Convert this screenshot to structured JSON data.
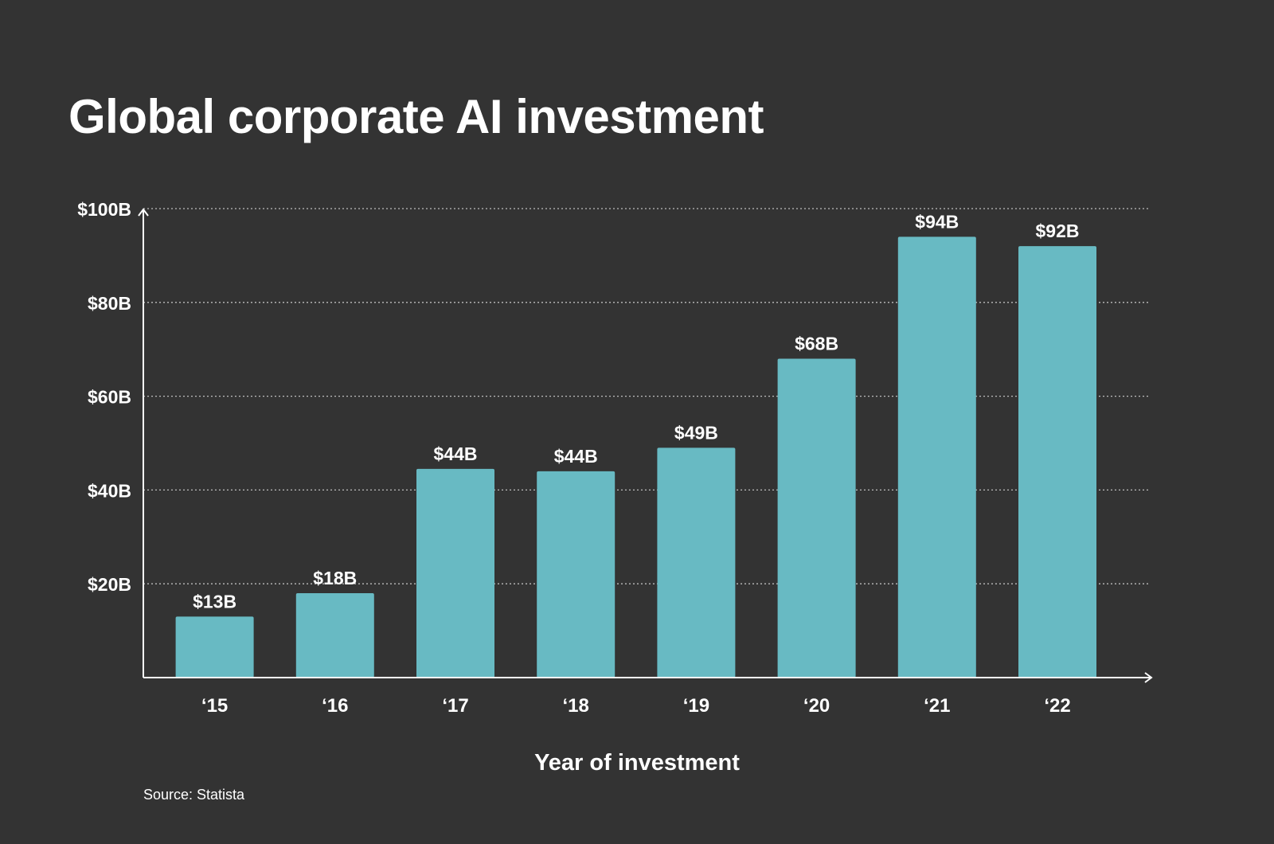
{
  "chart_data": {
    "type": "bar",
    "title": "Global corporate AI investment",
    "xlabel": "Year of investment",
    "ylabel": "",
    "categories": [
      "‘15",
      "‘16",
      "‘17",
      "‘18",
      "‘19",
      "‘20",
      "‘21",
      "‘22"
    ],
    "values": [
      13,
      18,
      44.5,
      44,
      49,
      68,
      94,
      92
    ],
    "value_labels": [
      "$13B",
      "$18B",
      "$44B",
      "$44B",
      "$49B",
      "$68B",
      "$94B",
      "$92B"
    ],
    "ylim": [
      0,
      100
    ],
    "yticks": [
      20,
      40,
      60,
      80,
      100
    ],
    "ytick_labels": [
      "$20B",
      "$40B",
      "$60B",
      "$80B",
      "$100B"
    ],
    "grid": "horizontal dotted",
    "source": "Source: Statista"
  },
  "colors": {
    "background": "#333333",
    "bar": "#68BAC3",
    "text": "#ffffff",
    "grid": "#bdbdbd",
    "axis": "#ffffff"
  }
}
